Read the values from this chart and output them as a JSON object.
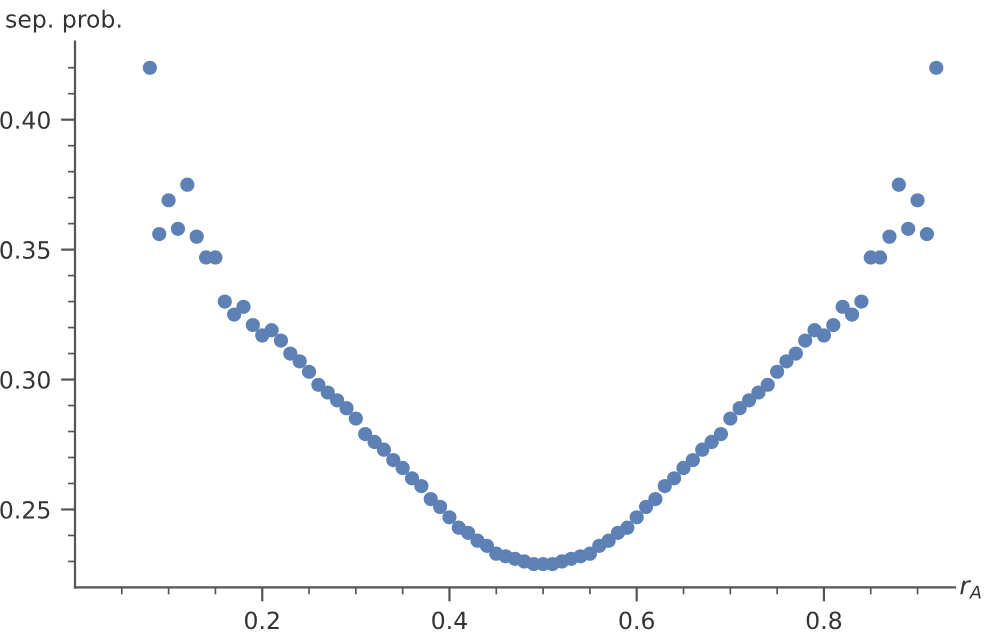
{
  "chart_data": {
    "type": "scatter",
    "xlabel": "r$_{A}$",
    "ylabel": "sep. prob.",
    "x": [
      0.08,
      0.09,
      0.1,
      0.11,
      0.12,
      0.13,
      0.14,
      0.15,
      0.16,
      0.17,
      0.18,
      0.19,
      0.2,
      0.21,
      0.22,
      0.23,
      0.24,
      0.25,
      0.26,
      0.27,
      0.28,
      0.29,
      0.3,
      0.31,
      0.32,
      0.33,
      0.34,
      0.35,
      0.36,
      0.37,
      0.38,
      0.39,
      0.4,
      0.41,
      0.42,
      0.43,
      0.44,
      0.45,
      0.46,
      0.47,
      0.48,
      0.49,
      0.5,
      0.51,
      0.52,
      0.53,
      0.54,
      0.55,
      0.56,
      0.57,
      0.58,
      0.59,
      0.6,
      0.61,
      0.62,
      0.63,
      0.64,
      0.65,
      0.66,
      0.67,
      0.68,
      0.69,
      0.7,
      0.71,
      0.72,
      0.73,
      0.74,
      0.75,
      0.76,
      0.77,
      0.78,
      0.79,
      0.8,
      0.81,
      0.82,
      0.83,
      0.84,
      0.85,
      0.86,
      0.87,
      0.88,
      0.89,
      0.9,
      0.91,
      0.92
    ],
    "series": [
      {
        "color": "#5e81b5",
        "values": [
          0.42,
          0.356,
          0.369,
          0.358,
          0.375,
          0.355,
          0.347,
          0.347,
          0.33,
          0.325,
          0.328,
          0.321,
          0.317,
          0.319,
          0.315,
          0.31,
          0.307,
          0.303,
          0.298,
          0.295,
          0.292,
          0.289,
          0.285,
          0.279,
          0.276,
          0.273,
          0.269,
          0.266,
          0.262,
          0.259,
          0.254,
          0.251,
          0.247,
          0.243,
          0.241,
          0.238,
          0.236,
          0.233,
          0.232,
          0.231,
          0.23,
          0.229,
          0.229,
          0.229,
          0.23,
          0.231,
          0.232,
          0.233,
          0.236,
          0.238,
          0.241,
          0.243,
          0.247,
          0.251,
          0.254,
          0.259,
          0.262,
          0.266,
          0.269,
          0.273,
          0.276,
          0.279,
          0.285,
          0.289,
          0.292,
          0.295,
          0.298,
          0.303,
          0.307,
          0.31,
          0.315,
          0.319,
          0.317,
          0.321,
          0.328,
          0.325,
          0.33,
          0.347,
          0.347,
          0.355,
          0.375,
          0.358,
          0.369,
          0.356,
          0.42
        ]
      }
    ],
    "marker": "circle",
    "grid": false,
    "legend": false,
    "xlim": [
      0,
      0.94
    ],
    "ylim": [
      0.22,
      0.43
    ],
    "xticks": [
      {
        "value": 0.05,
        "label": null
      },
      {
        "value": 0.1,
        "label": null
      },
      {
        "value": 0.15,
        "label": null
      },
      {
        "value": 0.2,
        "label": "0.2"
      },
      {
        "value": 0.25,
        "label": null
      },
      {
        "value": 0.3,
        "label": null
      },
      {
        "value": 0.35,
        "label": null
      },
      {
        "value": 0.4,
        "label": "0.4"
      },
      {
        "value": 0.45,
        "label": null
      },
      {
        "value": 0.5,
        "label": null
      },
      {
        "value": 0.55,
        "label": null
      },
      {
        "value": 0.6,
        "label": "0.6"
      },
      {
        "value": 0.65,
        "label": null
      },
      {
        "value": 0.7,
        "label": null
      },
      {
        "value": 0.75,
        "label": null
      },
      {
        "value": 0.8,
        "label": "0.8"
      },
      {
        "value": 0.85,
        "label": null
      },
      {
        "value": 0.9,
        "label": null
      }
    ],
    "yticks": [
      {
        "value": 0.23,
        "label": null
      },
      {
        "value": 0.24,
        "label": null
      },
      {
        "value": 0.25,
        "label": "0.25"
      },
      {
        "value": 0.26,
        "label": null
      },
      {
        "value": 0.27,
        "label": null
      },
      {
        "value": 0.28,
        "label": null
      },
      {
        "value": 0.29,
        "label": null
      },
      {
        "value": 0.3,
        "label": "0.30"
      },
      {
        "value": 0.31,
        "label": null
      },
      {
        "value": 0.32,
        "label": null
      },
      {
        "value": 0.33,
        "label": null
      },
      {
        "value": 0.34,
        "label": null
      },
      {
        "value": 0.35,
        "label": "0.35"
      },
      {
        "value": 0.36,
        "label": null
      },
      {
        "value": 0.37,
        "label": null
      },
      {
        "value": 0.38,
        "label": null
      },
      {
        "value": 0.39,
        "label": null
      },
      {
        "value": 0.4,
        "label": "0.40"
      },
      {
        "value": 0.41,
        "label": null
      },
      {
        "value": 0.42,
        "label": null
      }
    ]
  }
}
